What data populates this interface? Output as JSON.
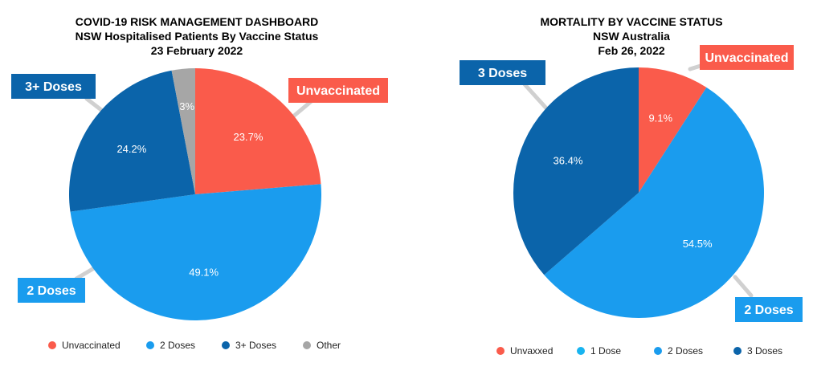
{
  "colors": {
    "unvaccinated": "#fa5b4b",
    "one_dose": "#18b4f0",
    "two_doses": "#1a9cee",
    "three_doses": "#0b64aa",
    "other": "#a6a6a6",
    "leader": "#d0d0d0",
    "label_text": "#ffffff",
    "legend_text": "#222222"
  },
  "chart_data": [
    {
      "type": "pie",
      "title_lines": [
        "COVID-19 RISK MANAGEMENT DASHBOARD",
        "NSW Hospitalised Patients By Vaccine Status",
        "23 February 2022"
      ],
      "slices": [
        {
          "name": "Unvaccinated",
          "value": 23.7,
          "label": "23.7%",
          "color_key": "unvaccinated",
          "callout": "Unvaccinated"
        },
        {
          "name": "2 Doses",
          "value": 49.1,
          "label": "49.1%",
          "color_key": "two_doses",
          "callout": "2 Doses"
        },
        {
          "name": "3+ Doses",
          "value": 24.2,
          "label": "24.2%",
          "color_key": "three_doses",
          "callout": "3+ Doses"
        },
        {
          "name": "Other",
          "value": 3.0,
          "label": "3%",
          "color_key": "other",
          "callout": ""
        }
      ],
      "legend": [
        {
          "name": "Unvaccinated",
          "color_key": "unvaccinated"
        },
        {
          "name": "2 Doses",
          "color_key": "two_doses"
        },
        {
          "name": "3+ Doses",
          "color_key": "three_doses"
        },
        {
          "name": "Other",
          "color_key": "other"
        }
      ],
      "legend_placement": "bottom"
    },
    {
      "type": "pie",
      "title_lines": [
        "MORTALITY BY VACCINE STATUS",
        "NSW Australia",
        "Feb 26, 2022"
      ],
      "slices": [
        {
          "name": "Unvaxxed",
          "value": 9.1,
          "label": "9.1%",
          "color_key": "unvaccinated",
          "callout": "Unvaccinated"
        },
        {
          "name": "1 Dose",
          "value": 0.0,
          "label": "",
          "color_key": "one_dose",
          "callout": ""
        },
        {
          "name": "2 Doses",
          "value": 54.5,
          "label": "54.5%",
          "color_key": "two_doses",
          "callout": "2 Doses"
        },
        {
          "name": "3 Doses",
          "value": 36.4,
          "label": "36.4%",
          "color_key": "three_doses",
          "callout": "3 Doses"
        }
      ],
      "legend": [
        {
          "name": "Unvaxxed",
          "color_key": "unvaccinated"
        },
        {
          "name": "1 Dose",
          "color_key": "one_dose"
        },
        {
          "name": "2 Doses",
          "color_key": "two_doses"
        },
        {
          "name": "3 Doses",
          "color_key": "three_doses"
        }
      ],
      "legend_placement": "bottom"
    }
  ]
}
